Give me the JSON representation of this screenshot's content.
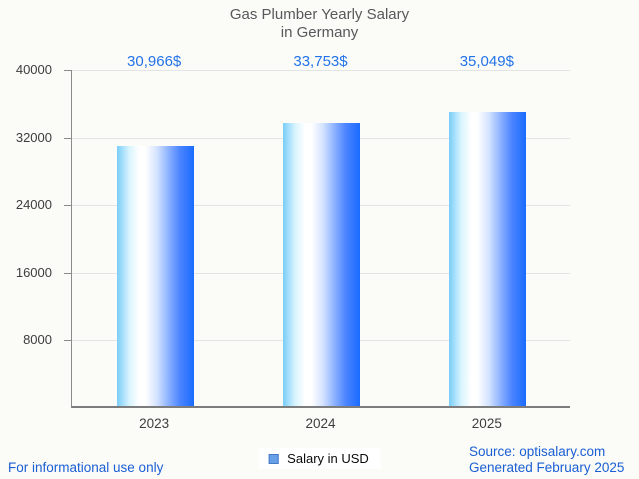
{
  "title": {
    "line1": "Gas Plumber Yearly Salary",
    "line2": "in Germany"
  },
  "chart_data": {
    "type": "bar",
    "title": "Gas Plumber Yearly Salary in Germany",
    "categories": [
      "2023",
      "2024",
      "2025"
    ],
    "series": [
      {
        "name": "Salary in USD",
        "values": [
          30966,
          33753,
          35049
        ]
      }
    ],
    "value_labels": [
      "30,966$",
      "33,753$",
      "35,049$"
    ],
    "ylim": [
      0,
      40000
    ],
    "yticks": [
      40000,
      32000,
      24000,
      16000,
      8000
    ],
    "grid": true,
    "legend_position": "bottom"
  },
  "legend": {
    "label": "Salary in USD"
  },
  "footer": {
    "disclaimer": "For informational use only",
    "source": "Source: optisalary.com",
    "generated": "Generated February 2025"
  },
  "colors": {
    "background": "#fbfbf8",
    "title_text": "#58585a",
    "axis_text": "#3d3d3d",
    "axis_line": "#8a8a8a",
    "grid_line": "#e4e4e4",
    "value_label": "#2273e8",
    "footer_text": "#1a5fd4",
    "bar_gradient_left": "#79cdf8",
    "bar_gradient_mid": "#ffffff",
    "bar_gradient_right": "#1a6bff",
    "legend_swatch": "#68a0e8",
    "legend_swatch_border": "#4679c8"
  }
}
